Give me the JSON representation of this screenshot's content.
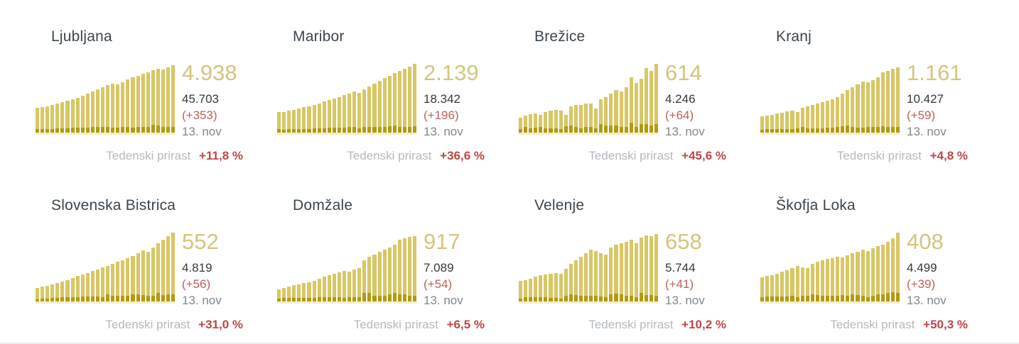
{
  "page": {
    "weekly_label": "Tedenski prirast",
    "date_shown": "13. nov"
  },
  "colors": {
    "bar_light": "#d8c765",
    "bar_dark": "#b29a10",
    "baseline": "#f4eecb",
    "highlight_gold": "#d4c57c",
    "title_slate": "#3c454e",
    "total_dark": "#33383d",
    "change_red": "#c2605a",
    "weekly_red": "#bf4646",
    "label_gray": "#b4b9be",
    "date_gray": "#7f868d"
  },
  "cards": [
    {
      "title": "Ljubljana",
      "highlight": "4.938",
      "total": "45.703",
      "change": "(+353)",
      "date": "13. nov",
      "weekly_label": "Tedenski prirast",
      "weekly_value": "+11,8 %"
    },
    {
      "title": "Maribor",
      "highlight": "2.139",
      "total": "18.342",
      "change": "(+196)",
      "date": "13. nov",
      "weekly_label": "Tedenski prirast",
      "weekly_value": "+36,6 %"
    },
    {
      "title": "Brežice",
      "highlight": "614",
      "total": "4.246",
      "change": "(+64)",
      "date": "13. nov",
      "weekly_label": "Tedenski prirast",
      "weekly_value": "+45,6 %"
    },
    {
      "title": "Kranj",
      "highlight": "1.161",
      "total": "10.427",
      "change": "(+59)",
      "date": "13. nov",
      "weekly_label": "Tedenski prirast",
      "weekly_value": "+4,8 %"
    },
    {
      "title": "Slovenska Bistrica",
      "highlight": "552",
      "total": "4.819",
      "change": "(+56)",
      "date": "13. nov",
      "weekly_label": "Tedenski prirast",
      "weekly_value": "+31,0 %"
    },
    {
      "title": "Domžale",
      "highlight": "917",
      "total": "7.089",
      "change": "(+54)",
      "date": "13. nov",
      "weekly_label": "Tedenski prirast",
      "weekly_value": "+6,5 %"
    },
    {
      "title": "Velenje",
      "highlight": "658",
      "total": "5.744",
      "change": "(+41)",
      "date": "13. nov",
      "weekly_label": "Tedenski prirast",
      "weekly_value": "+10,2 %"
    },
    {
      "title": "Škofja Loka",
      "highlight": "408",
      "total": "4.499",
      "change": "(+39)",
      "date": "13. nov",
      "weekly_label": "Tedenski prirast",
      "weekly_value": "+50,3 %"
    }
  ],
  "chart_data": [
    {
      "type": "bar",
      "title": "Ljubljana",
      "grid": false,
      "legend": "none",
      "ylim": [
        0,
        100
      ],
      "note": "sparkline; bar heights estimated as % of chart height, no axis labels shown",
      "series": [
        {
          "name": "cumulative-confirmed",
          "values": [
            36,
            37,
            38,
            40,
            42,
            44,
            46,
            48,
            51,
            54,
            57,
            60,
            63,
            66,
            69,
            71,
            70,
            73,
            77,
            80,
            83,
            86,
            88,
            91,
            93,
            92,
            95,
            98
          ]
        },
        {
          "name": "daily-increase",
          "values": [
            5,
            5,
            5,
            5,
            6,
            6,
            6,
            7,
            7,
            7,
            7,
            8,
            8,
            8,
            8,
            7,
            7,
            8,
            8,
            7,
            8,
            8,
            8,
            11,
            10,
            8,
            8,
            8
          ]
        }
      ]
    },
    {
      "type": "bar",
      "title": "Maribor",
      "grid": false,
      "legend": "none",
      "ylim": [
        0,
        100
      ],
      "note": "sparkline; bar heights estimated as % of chart height, no axis labels shown",
      "series": [
        {
          "name": "cumulative-confirmed",
          "values": [
            30,
            30,
            32,
            33,
            35,
            37,
            38,
            40,
            42,
            45,
            47,
            50,
            52,
            55,
            57,
            60,
            58,
            63,
            67,
            71,
            75,
            79,
            83,
            87,
            90,
            93,
            96,
            100
          ]
        },
        {
          "name": "daily-increase",
          "values": [
            5,
            4,
            5,
            5,
            5,
            5,
            5,
            6,
            6,
            6,
            7,
            7,
            7,
            7,
            8,
            8,
            6,
            8,
            8,
            8,
            8,
            8,
            9,
            10,
            8,
            8,
            8,
            9
          ]
        }
      ]
    },
    {
      "type": "bar",
      "title": "Brežice",
      "grid": false,
      "legend": "none",
      "ylim": [
        0,
        100
      ],
      "note": "sparkline; bar heights estimated as % of chart height, no axis labels shown",
      "series": [
        {
          "name": "cumulative-confirmed",
          "values": [
            22,
            25,
            27,
            28,
            26,
            30,
            32,
            33,
            32,
            26,
            38,
            40,
            40,
            42,
            42,
            35,
            48,
            52,
            57,
            62,
            60,
            66,
            80,
            72,
            78,
            94,
            90,
            100
          ]
        },
        {
          "name": "daily-increase",
          "values": [
            5,
            8,
            6,
            7,
            8,
            6,
            6,
            6,
            5,
            9,
            10,
            8,
            6,
            8,
            8,
            6,
            12,
            10,
            10,
            10,
            8,
            8,
            14,
            8,
            12,
            12,
            10,
            12
          ]
        }
      ]
    },
    {
      "type": "bar",
      "title": "Kranj",
      "grid": false,
      "legend": "none",
      "ylim": [
        0,
        100
      ],
      "note": "sparkline; bar heights estimated as % of chart height, no axis labels shown",
      "series": [
        {
          "name": "cumulative-confirmed",
          "values": [
            24,
            25,
            26,
            28,
            29,
            31,
            32,
            30,
            36,
            38,
            40,
            42,
            44,
            46,
            48,
            52,
            57,
            62,
            66,
            70,
            74,
            73,
            76,
            80,
            88,
            90,
            93,
            95
          ]
        },
        {
          "name": "daily-increase",
          "values": [
            4,
            5,
            5,
            5,
            5,
            5,
            5,
            6,
            8,
            6,
            6,
            6,
            6,
            7,
            7,
            8,
            9,
            10,
            8,
            7,
            7,
            8,
            8,
            8,
            9,
            8,
            8,
            8
          ]
        }
      ]
    },
    {
      "type": "bar",
      "title": "Slovenska Bistrica",
      "grid": false,
      "legend": "none",
      "ylim": [
        0,
        100
      ],
      "note": "sparkline; bar heights estimated as % of chart height, no axis labels shown",
      "series": [
        {
          "name": "cumulative-confirmed",
          "values": [
            20,
            22,
            23,
            25,
            27,
            29,
            31,
            34,
            37,
            39,
            41,
            44,
            46,
            49,
            52,
            55,
            58,
            60,
            63,
            66,
            70,
            74,
            72,
            78,
            85,
            90,
            95,
            100
          ]
        },
        {
          "name": "daily-increase",
          "values": [
            3,
            4,
            4,
            5,
            5,
            6,
            6,
            6,
            6,
            7,
            7,
            7,
            7,
            6,
            10,
            8,
            8,
            8,
            8,
            10,
            10,
            9,
            8,
            8,
            12,
            9,
            10,
            10
          ]
        }
      ]
    },
    {
      "type": "bar",
      "title": "Domžale",
      "grid": false,
      "legend": "none",
      "ylim": [
        0,
        100
      ],
      "note": "sparkline; bar heights estimated as % of chart height, no axis labels shown",
      "series": [
        {
          "name": "cumulative-confirmed",
          "values": [
            18,
            20,
            22,
            24,
            25,
            27,
            28,
            30,
            33,
            36,
            38,
            40,
            42,
            44,
            43,
            46,
            48,
            60,
            65,
            68,
            72,
            75,
            78,
            82,
            90,
            92,
            94,
            95
          ]
        },
        {
          "name": "daily-increase",
          "values": [
            4,
            5,
            5,
            5,
            5,
            5,
            5,
            5,
            6,
            6,
            6,
            6,
            6,
            5,
            6,
            6,
            6,
            12,
            12,
            8,
            8,
            8,
            10,
            12,
            10,
            10,
            8,
            8
          ]
        }
      ]
    },
    {
      "type": "bar",
      "title": "Velenje",
      "grid": false,
      "legend": "none",
      "ylim": [
        0,
        100
      ],
      "note": "sparkline; bar heights estimated as % of chart height, no axis labels shown",
      "series": [
        {
          "name": "cumulative-confirmed",
          "values": [
            30,
            31,
            33,
            36,
            38,
            39,
            40,
            41,
            40,
            47,
            55,
            60,
            65,
            70,
            75,
            73,
            70,
            68,
            78,
            83,
            85,
            87,
            90,
            85,
            93,
            96,
            95,
            98
          ]
        },
        {
          "name": "daily-increase",
          "values": [
            4,
            6,
            6,
            6,
            6,
            6,
            5,
            5,
            4,
            8,
            10,
            9,
            8,
            8,
            8,
            8,
            7,
            6,
            10,
            11,
            10,
            8,
            8,
            6,
            12,
            9,
            9,
            8
          ]
        }
      ]
    },
    {
      "type": "bar",
      "title": "Škofja Loka",
      "grid": false,
      "legend": "none",
      "ylim": [
        0,
        100
      ],
      "note": "sparkline; bar heights estimated as % of chart height, no axis labels shown",
      "series": [
        {
          "name": "cumulative-confirmed",
          "values": [
            35,
            37,
            38,
            40,
            43,
            45,
            48,
            52,
            50,
            48,
            55,
            58,
            60,
            62,
            63,
            65,
            64,
            67,
            70,
            72,
            75,
            73,
            77,
            80,
            83,
            87,
            92,
            100
          ]
        },
        {
          "name": "daily-increase",
          "values": [
            6,
            7,
            7,
            7,
            7,
            7,
            8,
            6,
            8,
            8,
            10,
            9,
            8,
            8,
            8,
            8,
            9,
            8,
            10,
            9,
            8,
            6,
            8,
            10,
            10,
            12,
            13,
            12
          ]
        }
      ]
    }
  ]
}
